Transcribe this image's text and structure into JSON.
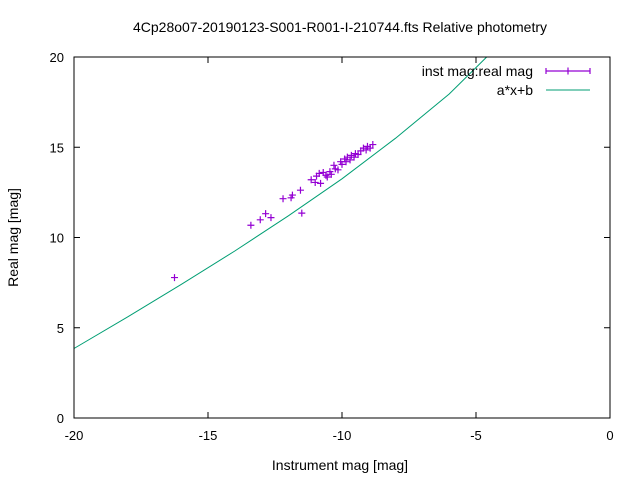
{
  "chart_data": {
    "type": "scatter",
    "title": "4Cp28o07-20190123-S001-R001-I-210744.fts Relative photometry",
    "xlabel": "Instrument mag [mag]",
    "ylabel": "Real mag [mag]",
    "xlim": [
      -20,
      0
    ],
    "ylim": [
      0,
      20
    ],
    "x_ticks": [
      "-20",
      "-15",
      "-10",
      "-5",
      "0"
    ],
    "y_ticks": [
      "0",
      "5",
      "10",
      "15",
      "20"
    ],
    "x_tick_values": [
      -20,
      -15,
      -10,
      -5,
      0
    ],
    "y_tick_values": [
      0,
      5,
      10,
      15,
      20
    ],
    "grid": false,
    "legend_position": "top-right",
    "series": [
      {
        "name": "inst mag:real mag",
        "kind": "points-with-errorbars",
        "color": "#9400d3",
        "points": [
          {
            "x": -16.25,
            "y": 7.78
          },
          {
            "x": -13.4,
            "y": 10.68
          },
          {
            "x": -13.05,
            "y": 10.98
          },
          {
            "x": -12.85,
            "y": 11.32
          },
          {
            "x": -12.65,
            "y": 11.1
          },
          {
            "x": -12.2,
            "y": 12.15
          },
          {
            "x": -11.9,
            "y": 12.2
          },
          {
            "x": -11.85,
            "y": 12.35
          },
          {
            "x": -11.55,
            "y": 12.62
          },
          {
            "x": -11.5,
            "y": 11.35
          },
          {
            "x": -11.15,
            "y": 13.2
          },
          {
            "x": -11.0,
            "y": 13.05
          },
          {
            "x": -10.95,
            "y": 13.4
          },
          {
            "x": -10.85,
            "y": 13.55
          },
          {
            "x": -10.8,
            "y": 13.0
          },
          {
            "x": -10.7,
            "y": 13.6
          },
          {
            "x": -10.6,
            "y": 13.45
          },
          {
            "x": -10.55,
            "y": 13.35
          },
          {
            "x": -10.45,
            "y": 13.65
          },
          {
            "x": -10.4,
            "y": 13.5
          },
          {
            "x": -10.3,
            "y": 14.0
          },
          {
            "x": -10.25,
            "y": 13.8
          },
          {
            "x": -10.15,
            "y": 13.75
          },
          {
            "x": -10.05,
            "y": 14.2
          },
          {
            "x": -10.0,
            "y": 14.05
          },
          {
            "x": -9.9,
            "y": 14.35
          },
          {
            "x": -9.85,
            "y": 14.2
          },
          {
            "x": -9.8,
            "y": 14.45
          },
          {
            "x": -9.7,
            "y": 14.3
          },
          {
            "x": -9.65,
            "y": 14.55
          },
          {
            "x": -9.55,
            "y": 14.45
          },
          {
            "x": -9.5,
            "y": 14.65
          },
          {
            "x": -9.4,
            "y": 14.6
          },
          {
            "x": -9.3,
            "y": 14.8
          },
          {
            "x": -9.2,
            "y": 14.95
          },
          {
            "x": -9.1,
            "y": 14.85
          },
          {
            "x": -9.05,
            "y": 15.05
          },
          {
            "x": -8.95,
            "y": 14.95
          },
          {
            "x": -8.85,
            "y": 15.15
          }
        ]
      },
      {
        "name": "a*x+b",
        "kind": "line",
        "color": "#009e73",
        "x": [
          -20,
          -18,
          -16,
          -14,
          -12,
          -10,
          -8,
          -6,
          -4.6
        ],
        "y": [
          3.85,
          5.6,
          7.4,
          9.25,
          11.2,
          13.25,
          15.5,
          17.95,
          20.0
        ]
      }
    ]
  }
}
